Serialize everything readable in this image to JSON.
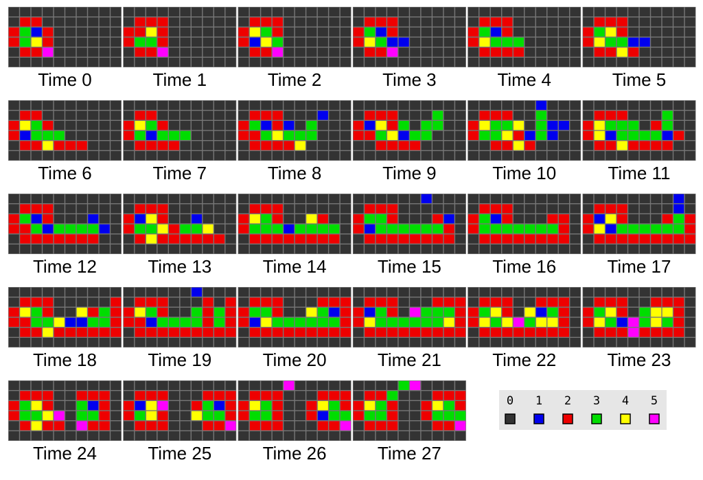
{
  "legend": {
    "states": [
      0,
      1,
      2,
      3,
      4,
      5
    ],
    "colors": [
      "#333333",
      "#0000ee",
      "#ee0000",
      "#00dd00",
      "#ffff00",
      "#ff00ff"
    ]
  },
  "panels": [
    {
      "label": "Time 0",
      "grid": [
        "0000000000",
        "0220000000",
        "2312000000",
        "2342000000",
        "0225000000",
        "0000000000"
      ]
    },
    {
      "label": "Time 1",
      "grid": [
        "0000000000",
        "0222000000",
        "2242000000",
        "2332000000",
        "0225000000",
        "0000000000"
      ]
    },
    {
      "label": "Time 2",
      "grid": [
        "0000000000",
        "0222000000",
        "2432000000",
        "2143000000",
        "0225000000",
        "0000000000"
      ]
    },
    {
      "label": "Time 3",
      "grid": [
        "0000000000",
        "0222000000",
        "2312000000",
        "2431100000",
        "0225000000",
        "0000000000"
      ]
    },
    {
      "label": "Time 4",
      "grid": [
        "0000000000",
        "0222000000",
        "2312000000",
        "2433300000",
        "0222200000",
        "0000000000"
      ]
    },
    {
      "label": "Time 5",
      "grid": [
        "0000000000",
        "0222000000",
        "2342000000",
        "2433110000",
        "0224200000",
        "0000000000"
      ]
    },
    {
      "label": "Time 6",
      "grid": [
        "0000000000",
        "0220000000",
        "2432000000",
        "2133300000",
        "0224222000",
        "0000000000"
      ]
    },
    {
      "label": "Time 7",
      "grid": [
        "0000000000",
        "0220000000",
        "2432000000",
        "2313330000",
        "0222200000",
        "0000000000"
      ]
    },
    {
      "label": "Time 8",
      "grid": [
        "0000000000",
        "0222000100",
        "2312103000",
        "2234333000",
        "0222240000",
        "0000000000"
      ]
    },
    {
      "label": "Time 9",
      "grid": [
        "0000000000",
        "0222000300",
        "2142303300",
        "2234133000",
        "0022220000",
        "0000000000"
      ]
    },
    {
      "label": "Time 10",
      "grid": [
        "0000001000",
        "0222003000",
        "2433403110",
        "2334213100",
        "0022420000",
        "0000000000"
      ]
    },
    {
      "label": "Time 11",
      "grid": [
        "0000000000",
        "0222000300",
        "2433302300",
        "2413333120",
        "0224222200",
        "0000000000"
      ]
    },
    {
      "label": "Time 12",
      "grid": [
        "0000000000",
        "0222000000",
        "2312000100",
        "2231333310",
        "0222222200",
        "0000000000"
      ]
    },
    {
      "label": "Time 13",
      "grid": [
        "0000000000",
        "0222000000",
        "2142001000",
        "2334233400",
        "0242222220",
        "0000000000"
      ]
    },
    {
      "label": "Time 14",
      "grid": [
        "0000000000",
        "0222000000",
        "2432004200",
        "2333133330",
        "0222222220",
        "0000000000"
      ]
    },
    {
      "label": "Time 15",
      "grid": [
        "0000001000",
        "0222000000",
        "2332000210",
        "2133333320",
        "0222222220",
        "0000000000"
      ]
    },
    {
      "label": "Time 16",
      "grid": [
        "0000000000",
        "0222000000",
        "2312000220",
        "2333333320",
        "0222222220",
        "0000000000"
      ]
    },
    {
      "label": "Time 17",
      "grid": [
        "0000000010",
        "0222000010",
        "2142000232",
        "2413333332",
        "0222222222",
        "0000000000"
      ]
    },
    {
      "label": "Time 18",
      "grid": [
        "0000000000",
        "0222000002",
        "2432004232",
        "2233411332",
        "0224222222",
        "0000000000"
      ]
    },
    {
      "label": "Time 19",
      "grid": [
        "0000001000",
        "0222000202",
        "2432003232",
        "2213333232",
        "0222222222",
        "0000000000"
      ]
    },
    {
      "label": "Time 20",
      "grid": [
        "0000000000",
        "0222000222",
        "2332004312",
        "2143333332",
        "0222222222",
        "0000000000"
      ]
    },
    {
      "label": "Time 21",
      "grid": [
        "0000000000",
        "0222000222",
        "2132053332",
        "2433333342",
        "0222222222",
        "0000000000"
      ]
    },
    {
      "label": "Time 22",
      "grid": [
        "0000000000",
        "0222002220",
        "2342041320",
        "2434534420",
        "0222222220",
        "0000000000"
      ]
    },
    {
      "label": "Time 23",
      "grid": [
        "0000000000",
        "0222002220",
        "2342034420",
        "2431534320",
        "0222522220",
        "0000000000"
      ]
    },
    {
      "label": "Time 24",
      "grid": [
        "0000000000",
        "0222002220",
        "2342003120",
        "2334503320",
        "0242205220",
        "0000000000"
      ]
    },
    {
      "label": "Time 25",
      "grid": [
        "0000000000",
        "0222000222",
        "2145002312",
        "2342004332",
        "0222000225",
        "0000000000"
      ]
    },
    {
      "label": "Time 26",
      "grid": [
        "0000500000",
        "0222000222",
        "2432002432",
        "2332002133",
        "0222000225",
        "0000000000"
      ]
    },
    {
      "label": "Time 27",
      "grid": [
        "0000350000",
        "0223000222",
        "2432002432",
        "2332002333",
        "0222000225",
        "0000000000"
      ]
    }
  ]
}
